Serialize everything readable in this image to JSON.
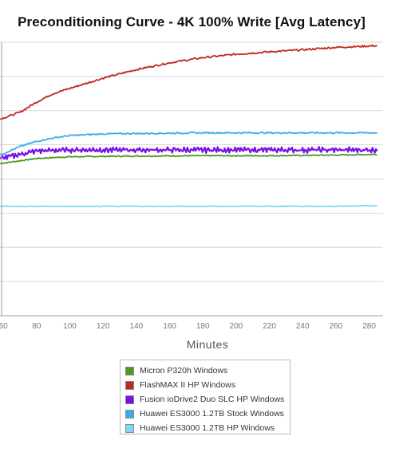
{
  "chart_data": {
    "type": "line",
    "title": "Preconditioning Curve - 4K 100% Write [Avg Latency]",
    "xlabel": "Minutes",
    "ylabel": "",
    "x_ticks": [
      "60",
      "80",
      "100",
      "120",
      "140",
      "160",
      "180",
      "200",
      "220",
      "240",
      "260",
      "280"
    ],
    "xlim": [
      58,
      285
    ],
    "ylim": [
      0,
      8
    ],
    "grid": true,
    "legend_position": "bottom",
    "series": [
      {
        "name": "Micron P320h Windows",
        "color": "#4a9a1f",
        "x": [
          58,
          80,
          100,
          140,
          180,
          220,
          260,
          285
        ],
        "y": [
          4.45,
          4.6,
          4.65,
          4.67,
          4.68,
          4.68,
          4.7,
          4.72
        ]
      },
      {
        "name": "FlashMAX II HP Windows",
        "color": "#c0291c",
        "x": [
          58,
          70,
          80,
          90,
          100,
          110,
          120,
          140,
          160,
          180,
          200,
          220,
          240,
          260,
          285
        ],
        "y": [
          5.75,
          5.95,
          6.25,
          6.5,
          6.65,
          6.8,
          6.95,
          7.2,
          7.4,
          7.55,
          7.65,
          7.72,
          7.78,
          7.85,
          7.9
        ]
      },
      {
        "name": "Fusion ioDrive2 Duo SLC HP Windows",
        "color": "#7a10e8",
        "x": [
          58,
          80,
          100,
          140,
          180,
          220,
          260,
          285
        ],
        "y": [
          4.6,
          4.82,
          4.85,
          4.85,
          4.85,
          4.85,
          4.85,
          4.85
        ]
      },
      {
        "name": "Huawei ES3000 1.2TB Stock Windows",
        "color": "#3aade8",
        "x": [
          58,
          70,
          80,
          90,
          100,
          120,
          140,
          180,
          220,
          260,
          285
        ],
        "y": [
          4.7,
          4.95,
          5.1,
          5.2,
          5.27,
          5.32,
          5.33,
          5.35,
          5.35,
          5.35,
          5.35
        ]
      },
      {
        "name": "Huawei ES3000 1.2TB HP Windows",
        "color": "#7fd6f5",
        "x": [
          58,
          100,
          140,
          180,
          220,
          260,
          285
        ],
        "y": [
          3.2,
          3.2,
          3.2,
          3.2,
          3.2,
          3.2,
          3.22
        ]
      }
    ]
  }
}
